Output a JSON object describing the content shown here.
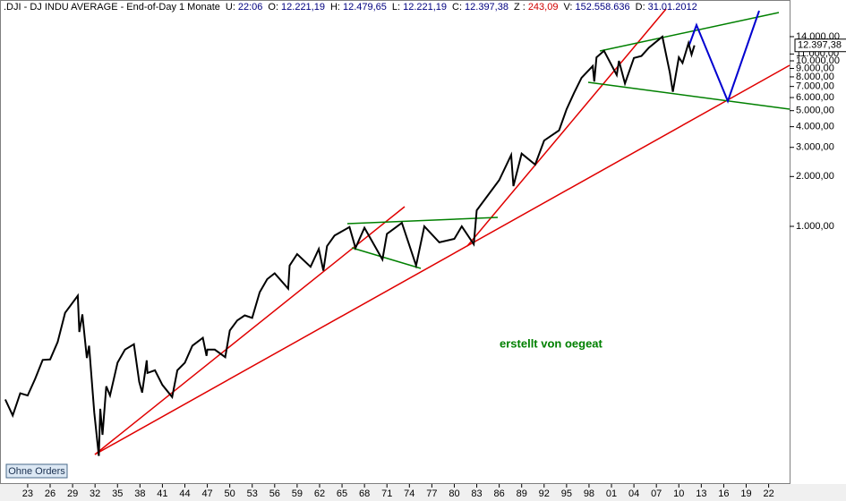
{
  "chart_data": {
    "type": "line",
    "title": ".DJI - DJ INDU AVERAGE - End-of-Day 1 Monate",
    "info": [
      {
        "label": "U:",
        "value": "22:06"
      },
      {
        "label": "O:",
        "value": "12.221,19"
      },
      {
        "label": "H:",
        "value": "12.479,65"
      },
      {
        "label": "L:",
        "value": "12.221,19"
      },
      {
        "label": "C:",
        "value": "12.397,38"
      },
      {
        "label": "Z :",
        "value": "243,09"
      },
      {
        "label": "V:",
        "value": "152.558.636"
      },
      {
        "label": "D:",
        "value": "31.01.2012"
      }
    ],
    "annotation": "erstellt von oegeat",
    "button": "Ohne Orders",
    "log_scale": true,
    "color": "#000000",
    "x": [
      1920,
      1921,
      1922,
      1923,
      1924,
      1925,
      1926,
      1927,
      1928,
      1929.7,
      1929.9,
      1930.3,
      1930.9,
      1931.2,
      1931.9,
      1932.5,
      1932.7,
      1933,
      1933.5,
      1934,
      1935,
      1936,
      1937.2,
      1937.9,
      1938.3,
      1938.9,
      1939,
      1940,
      1941,
      1942.3,
      1943,
      1944,
      1945,
      1946.4,
      1946.9,
      1947,
      1948,
      1949.4,
      1950,
      1951,
      1952,
      1953,
      1954,
      1955,
      1956,
      1957.8,
      1958,
      1959,
      1960.8,
      1961.9,
      1962.5,
      1963,
      1964,
      1966,
      1966.8,
      1968,
      1970.4,
      1971,
      1973,
      1974.9,
      1976,
      1978,
      1980,
      1981,
      1982.6,
      1983,
      1986,
      1987.6,
      1987.9,
      1989,
      1990.8,
      1992,
      1994,
      1995,
      1996,
      1997,
      1998.5,
      1998.7,
      1999,
      2000,
      2001.7,
      2002,
      2002.8,
      2004,
      2005,
      2006,
      2007.8,
      2008.8,
      2009.2,
      2010,
      2010.5,
      2011.3,
      2011.7,
      2012.08
    ],
    "values": [
      90,
      72,
      98,
      95,
      120,
      156,
      157,
      200,
      300,
      381,
      230,
      294,
      160,
      190,
      75,
      41,
      79,
      55,
      108,
      95,
      150,
      180,
      194,
      115,
      99,
      155,
      130,
      135,
      110,
      93,
      135,
      150,
      190,
      212,
      165,
      180,
      180,
      162,
      235,
      270,
      290,
      280,
      400,
      480,
      520,
      420,
      580,
      680,
      570,
      730,
      540,
      760,
      880,
      990,
      740,
      980,
      630,
      900,
      1050,
      580,
      1000,
      800,
      840,
      1000,
      780,
      1250,
      1900,
      2700,
      1750,
      2750,
      2360,
      3300,
      3800,
      5100,
      6400,
      7900,
      9300,
      7500,
      10500,
      11500,
      8200,
      10000,
      7300,
      10400,
      10700,
      12000,
      14000,
      8500,
      6500,
      10500,
      9700,
      12800,
      10900,
      12397
    ],
    "xlim": [
      1919.3,
      2024.8
    ],
    "ylim": [
      28.1,
      23310
    ],
    "xticks": [
      {
        "value": 1923,
        "label": "23"
      },
      {
        "value": 1926,
        "label": "26"
      },
      {
        "value": 1929,
        "label": "29"
      },
      {
        "value": 1932,
        "label": "32"
      },
      {
        "value": 1935,
        "label": "35"
      },
      {
        "value": 1938,
        "label": "38"
      },
      {
        "value": 1941,
        "label": "41"
      },
      {
        "value": 1944,
        "label": "44"
      },
      {
        "value": 1947,
        "label": "47"
      },
      {
        "value": 1950,
        "label": "50"
      },
      {
        "value": 1953,
        "label": "53"
      },
      {
        "value": 1956,
        "label": "56"
      },
      {
        "value": 1959,
        "label": "59"
      },
      {
        "value": 1962,
        "label": "62"
      },
      {
        "value": 1965,
        "label": "65"
      },
      {
        "value": 1968,
        "label": "68"
      },
      {
        "value": 1971,
        "label": "71"
      },
      {
        "value": 1974,
        "label": "74"
      },
      {
        "value": 1977,
        "label": "77"
      },
      {
        "value": 1980,
        "label": "80"
      },
      {
        "value": 1983,
        "label": "83"
      },
      {
        "value": 1986,
        "label": "86"
      },
      {
        "value": 1989,
        "label": "89"
      },
      {
        "value": 1992,
        "label": "92"
      },
      {
        "value": 1995,
        "label": "95"
      },
      {
        "value": 1998,
        "label": "98"
      },
      {
        "value": 2001,
        "label": "01"
      },
      {
        "value": 2004,
        "label": "04"
      },
      {
        "value": 2007,
        "label": "07"
      },
      {
        "value": 2010,
        "label": "10"
      },
      {
        "value": 2013,
        "label": "13"
      },
      {
        "value": 2016,
        "label": "16"
      },
      {
        "value": 2019,
        "label": "19"
      },
      {
        "value": 2022,
        "label": "22"
      }
    ],
    "yticks": [
      {
        "value": 1000,
        "label": "1.000,00"
      },
      {
        "value": 2000,
        "label": "2.000,00"
      },
      {
        "value": 3000,
        "label": "3.000,00"
      },
      {
        "value": 4000,
        "label": "4.000,00"
      },
      {
        "value": 5000,
        "label": "5.000,00"
      },
      {
        "value": 6000,
        "label": "6.000,00"
      },
      {
        "value": 7000,
        "label": "7.000,00"
      },
      {
        "value": 8000,
        "label": "8.000,00"
      },
      {
        "value": 9000,
        "label": "9.000,00"
      },
      {
        "value": 10000,
        "label": "10.000,00"
      },
      {
        "value": 11000,
        "label": "11.000,00"
      },
      {
        "value": 14000,
        "label": "14.000,00"
      }
    ],
    "last_price": {
      "value": 12397.38,
      "label": "12.397,38"
    }
  }
}
